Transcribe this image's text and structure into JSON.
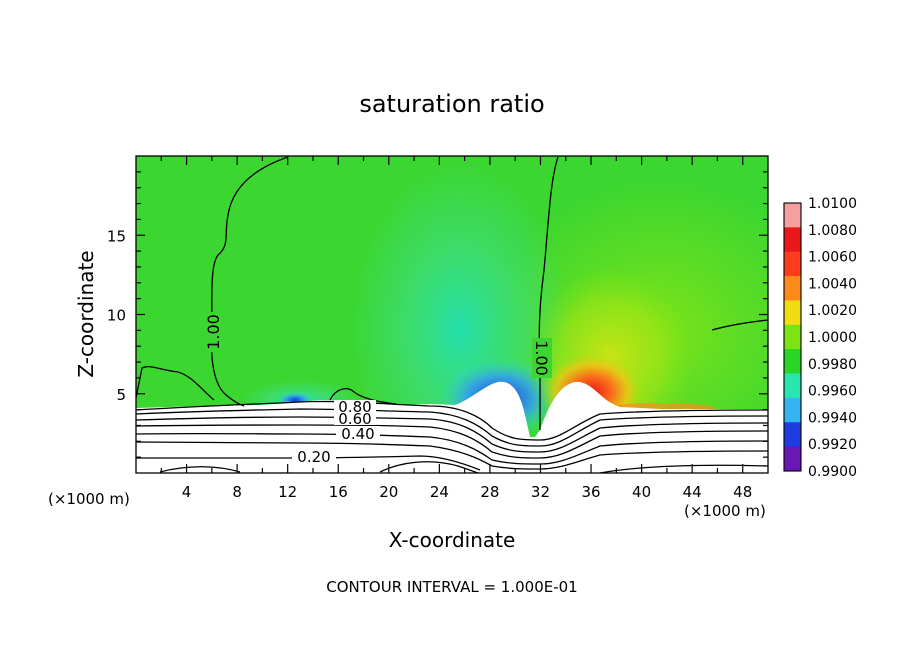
{
  "chart_data": {
    "type": "heatmap",
    "title": "saturation ratio",
    "xlabel": "X-coordinate",
    "ylabel": "Z-coordinate",
    "x_unit_left": "(×1000 m)",
    "x_unit_right": "(×1000 m)",
    "xlim": [
      0,
      50
    ],
    "ylim": [
      0,
      20
    ],
    "x_ticks": [
      4,
      8,
      12,
      16,
      20,
      24,
      28,
      32,
      36,
      40,
      44,
      48
    ],
    "y_ticks": [
      5,
      10,
      15
    ],
    "colorbar": {
      "levels": [
        "1.0100",
        "1.0080",
        "1.0060",
        "1.0040",
        "1.0020",
        "1.0000",
        "0.9980",
        "0.9960",
        "0.9940",
        "0.9920",
        "0.9900"
      ],
      "colors": [
        "#f4a0a0",
        "#e81818",
        "#ff3c1c",
        "#ff8a1c",
        "#f2dc14",
        "#7ce414",
        "#28d628",
        "#28e6b0",
        "#34b4f0",
        "#1f3ce0",
        "#6a18b4"
      ]
    },
    "contour_labels": [
      {
        "text": "1.00",
        "x": 5.5,
        "z": 9.2
      },
      {
        "text": "1.00",
        "x": 31.8,
        "z": 7.5
      },
      {
        "text": "0.80",
        "x": 17.5,
        "z": 4.1
      },
      {
        "text": "0.60",
        "x": 17.5,
        "z": 3.4
      },
      {
        "text": "0.40",
        "x": 17.5,
        "z": 2.4
      },
      {
        "text": "0.20",
        "x": 14.0,
        "z": 1.0
      }
    ],
    "footer": "CONTOUR INTERVAL = 1.000E-01"
  }
}
